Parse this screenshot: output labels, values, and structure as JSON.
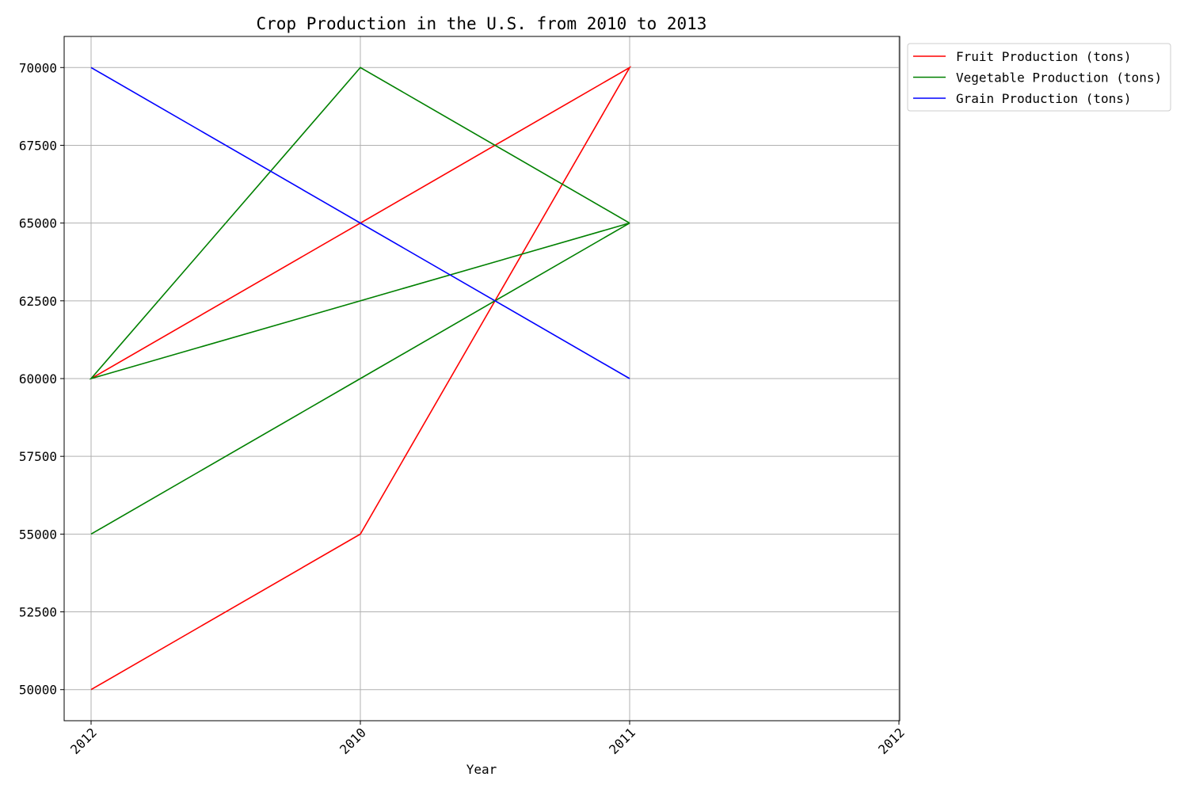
{
  "chart_data": {
    "type": "line",
    "title": "Crop Production in the U.S. from 2010 to 2013",
    "xlabel": "Year",
    "ylabel": "",
    "x_tick_labels": [
      "2012",
      "2010",
      "2011",
      "2012"
    ],
    "y_ticks": [
      50000,
      52500,
      55000,
      57500,
      60000,
      62500,
      65000,
      67500,
      70000
    ],
    "ylim": [
      49000,
      71000
    ],
    "grid": true,
    "legend_position": "outside upper-right",
    "series": [
      {
        "name": "Fruit Production (tons)",
        "color": "#ff0000",
        "x": [
          0,
          1,
          2,
          0,
          1,
          2
        ],
        "y": [
          50000,
          55000,
          70000,
          60000,
          65000,
          70000
        ]
      },
      {
        "name": "Vegetable Production (tons)",
        "color": "#008000",
        "x": [
          0,
          1,
          2,
          0,
          1,
          2
        ],
        "y": [
          55000,
          60000,
          65000,
          60000,
          70000,
          65000
        ]
      },
      {
        "name": "Grain Production (tons)",
        "color": "#0000ff",
        "x": [
          0,
          1,
          2,
          0,
          1,
          2
        ],
        "y": [
          70000,
          65000,
          60000,
          70000,
          65000,
          60000
        ]
      }
    ]
  }
}
